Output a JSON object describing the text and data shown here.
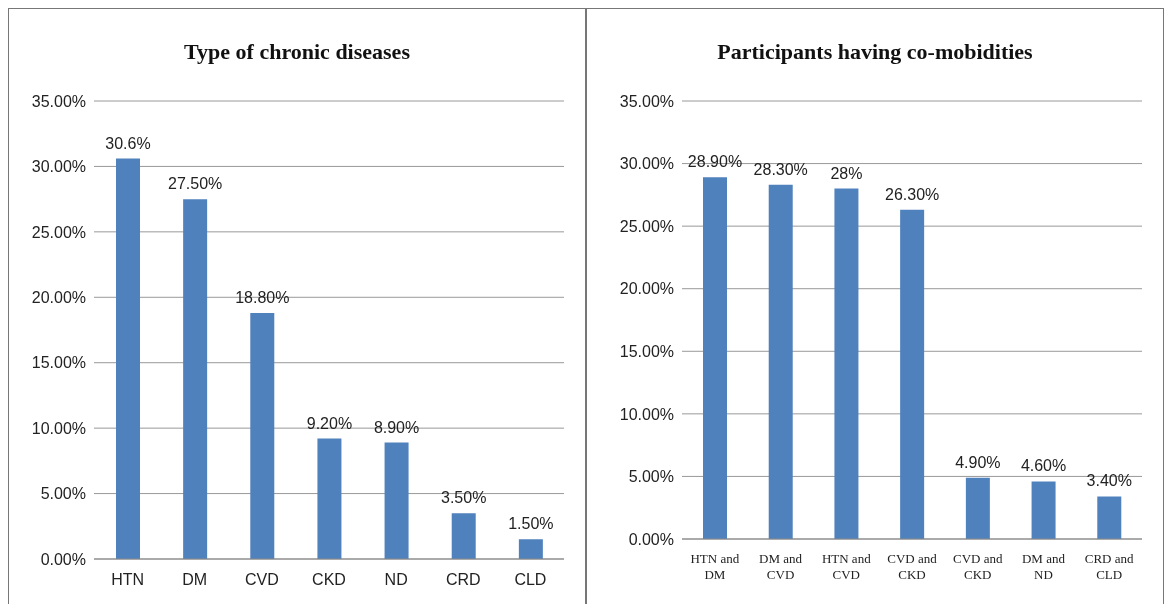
{
  "chart_data": [
    {
      "type": "bar",
      "title": "Type of chronic diseases",
      "categories": [
        "HTN",
        "DM",
        "CVD",
        "CKD",
        "ND",
        "CRD",
        "CLD"
      ],
      "values": [
        30.6,
        27.5,
        18.8,
        9.2,
        8.9,
        3.5,
        1.5
      ],
      "value_labels": [
        "30.6%",
        "27.50%",
        "18.80%",
        "9.20%",
        "8.90%",
        "3.50%",
        "1.50%"
      ],
      "color": "#4f81bd",
      "ylim": [
        0,
        35
      ],
      "yticks": [
        {
          "value": 0,
          "label": "0.00%"
        },
        {
          "value": 5,
          "label": "5.00%"
        },
        {
          "value": 10,
          "label": "10.00%"
        },
        {
          "value": 15,
          "label": "15.00%"
        },
        {
          "value": 20,
          "label": "20.00%"
        },
        {
          "value": 25,
          "label": "25.00%"
        },
        {
          "value": 30,
          "label": "30.00%"
        },
        {
          "value": 35,
          "label": "35.00%"
        }
      ],
      "grid": "y",
      "legend": false
    },
    {
      "type": "bar",
      "title": "Participants having co-mobidities",
      "categories": [
        "HTN and DM",
        "DM and CVD",
        "HTN and CVD",
        "CVD and CKD",
        "CVD and CKD",
        "DM and ND",
        "CRD and CLD"
      ],
      "values": [
        28.9,
        28.3,
        28,
        26.3,
        4.9,
        4.6,
        3.4
      ],
      "value_labels": [
        "28.90%",
        "28.30%",
        "28%",
        "26.30%",
        "4.90%",
        "4.60%",
        "3.40%"
      ],
      "color": "#4f81bd",
      "ylim": [
        0,
        35
      ],
      "yticks": [
        {
          "value": 0,
          "label": "0.00%"
        },
        {
          "value": 5,
          "label": "5.00%"
        },
        {
          "value": 10,
          "label": "10.00%"
        },
        {
          "value": 15,
          "label": "15.00%"
        },
        {
          "value": 20,
          "label": "20.00%"
        },
        {
          "value": 25,
          "label": "25.00%"
        },
        {
          "value": 30,
          "label": "30.00%"
        },
        {
          "value": 35,
          "label": "35.00%"
        }
      ],
      "grid": "y",
      "legend": false
    }
  ]
}
